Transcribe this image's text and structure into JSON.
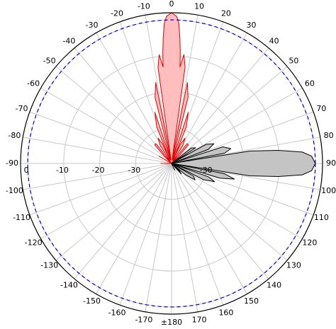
{
  "chart_data": {
    "type": "polar",
    "title": "",
    "angle_unit": "degrees",
    "angle_zero": "top",
    "angle_direction": "clockwise",
    "angle_tick_labels": [
      "0",
      "10",
      "20",
      "30",
      "40",
      "50",
      "60",
      "70",
      "80",
      "90",
      "100",
      "110",
      "120",
      "130",
      "140",
      "150",
      "160",
      "170",
      "±180",
      "-170",
      "-160",
      "-150",
      "-140",
      "-130",
      "-120",
      "-110",
      "-100",
      "-90",
      "-80",
      "-70",
      "-60",
      "-50",
      "-40",
      "-30",
      "-20",
      "-10"
    ],
    "radial_range_db": [
      -40,
      2
    ],
    "radial_ticks_db": [
      -30,
      -20,
      -10,
      0
    ],
    "radial_tick_labels": [
      "-30",
      "-20",
      "-10",
      "0"
    ],
    "radial_label_position": "along the -90° to 90° horizontal line",
    "reference_circle_db": 0,
    "reference_circle_style": "blue dashed",
    "grid": true,
    "legend": "none",
    "series": [
      {
        "color_fill": "#ffbdbd",
        "color_line": "#e00000",
        "points": [
          [
            -180,
            -40
          ],
          [
            -150,
            -40
          ],
          [
            -95,
            -40
          ],
          [
            -90,
            -37
          ],
          [
            -85,
            -40
          ],
          [
            -65,
            -40
          ],
          [
            -60,
            -36
          ],
          [
            -55,
            -40
          ],
          [
            -45,
            -37
          ],
          [
            -42,
            -33
          ],
          [
            -38,
            -33
          ],
          [
            -35,
            -40
          ],
          [
            -32,
            -34
          ],
          [
            -28,
            -32
          ],
          [
            -25,
            -34
          ],
          [
            -24,
            -39
          ],
          [
            -22,
            -29
          ],
          [
            -18,
            -25
          ],
          [
            -15,
            -39
          ],
          [
            -14,
            -21
          ],
          [
            -11,
            -17
          ],
          [
            -9,
            -39
          ],
          [
            -8,
            -13
          ],
          [
            -6.5,
            -9.5
          ],
          [
            -5,
            -13
          ],
          [
            -4.5,
            -9
          ],
          [
            -3.8,
            -5
          ],
          [
            -3,
            -1
          ],
          [
            -2,
            1
          ],
          [
            0,
            2
          ],
          [
            2,
            1
          ],
          [
            3,
            -1
          ],
          [
            3.8,
            -5
          ],
          [
            4.5,
            -9
          ],
          [
            5,
            -13
          ],
          [
            6.5,
            -9.5
          ],
          [
            8,
            -13
          ],
          [
            9,
            -39
          ],
          [
            11,
            -17
          ],
          [
            14,
            -21
          ],
          [
            15,
            -39
          ],
          [
            18,
            -25
          ],
          [
            22,
            -29
          ],
          [
            24,
            -39
          ],
          [
            25,
            -34
          ],
          [
            28,
            -32
          ],
          [
            32,
            -34
          ],
          [
            35,
            -40
          ],
          [
            38,
            -33
          ],
          [
            42,
            -33
          ],
          [
            45,
            -37
          ],
          [
            55,
            -40
          ],
          [
            60,
            -35
          ],
          [
            65,
            -40
          ],
          [
            150,
            -40
          ],
          [
            180,
            -40
          ]
        ]
      },
      {
        "color_fill": "#c4c4c4",
        "color_line": "#000000",
        "points": [
          [
            0,
            -40
          ],
          [
            50,
            -40
          ],
          [
            52,
            -33
          ],
          [
            57,
            -32
          ],
          [
            60,
            -40
          ],
          [
            61,
            -29
          ],
          [
            65,
            -27
          ],
          [
            69,
            -29
          ],
          [
            70,
            -40
          ],
          [
            72,
            -25
          ],
          [
            76,
            -23
          ],
          [
            79,
            -25
          ],
          [
            80,
            -40
          ],
          [
            81,
            -18
          ],
          [
            83,
            -10
          ],
          [
            85,
            -3.5
          ],
          [
            87,
            -1
          ],
          [
            90,
            0
          ],
          [
            93,
            -1
          ],
          [
            95,
            -3.5
          ],
          [
            97,
            -10
          ],
          [
            99,
            -18
          ],
          [
            100,
            -40
          ],
          [
            101,
            -25
          ],
          [
            104,
            -22
          ],
          [
            107,
            -26
          ],
          [
            108,
            -40
          ],
          [
            110,
            -29
          ],
          [
            113,
            -27
          ],
          [
            117,
            -30
          ],
          [
            118,
            -40
          ],
          [
            120,
            -33
          ],
          [
            125,
            -32
          ],
          [
            129,
            -35
          ],
          [
            130,
            -40
          ],
          [
            133,
            -37
          ],
          [
            137,
            -36
          ],
          [
            140,
            -40
          ],
          [
            150,
            -40
          ],
          [
            155,
            -38
          ],
          [
            158,
            -40
          ],
          [
            360,
            -40
          ]
        ]
      }
    ]
  },
  "colors": {
    "grid": "#c8c8c8",
    "outer_circle": "#000000",
    "reference_circle": "#0000cc"
  }
}
